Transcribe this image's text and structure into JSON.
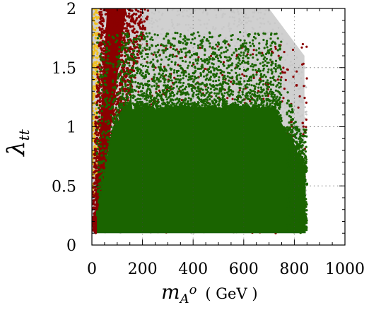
{
  "chart_data": {
    "type": "scatter",
    "x_ticks": [
      "0",
      "200",
      "400",
      "600",
      "800",
      "1000"
    ],
    "y_ticks": [
      "0",
      "0.5",
      "1",
      "1.5",
      "2"
    ],
    "xlim": [
      0,
      1000
    ],
    "ylim": [
      0,
      2
    ],
    "y_label": {
      "base": "λ",
      "sub": "tt"
    },
    "x_label": {
      "base": "m",
      "sub_base": "A",
      "sup": "o",
      "unit": "( GeV )"
    },
    "grid": "dotted vertical lines at x = 200, 400, 600, 800 (upper area); dotted horizontal lines at y = 0.5, 1, 1.5 (right area)",
    "series": [
      {
        "color": "#c8c8c8",
        "region": "x 0–840, y 0.1–2.0, filling the upper area"
      },
      {
        "color": "#f0c020",
        "region": "x 0–40, y 0.4–2.0, thin strip along the left edge"
      },
      {
        "color": "#8b0000",
        "region": "x 5–850, y 0.1–2.0; dense wedge from (10, 0.1) widening up to x 80–160 at y 2.0"
      },
      {
        "color": "#1a6400",
        "region": "x 20–850, y 0.1–1.8; dense core below y 1.0, sparse up to y 1.8"
      }
    ]
  }
}
